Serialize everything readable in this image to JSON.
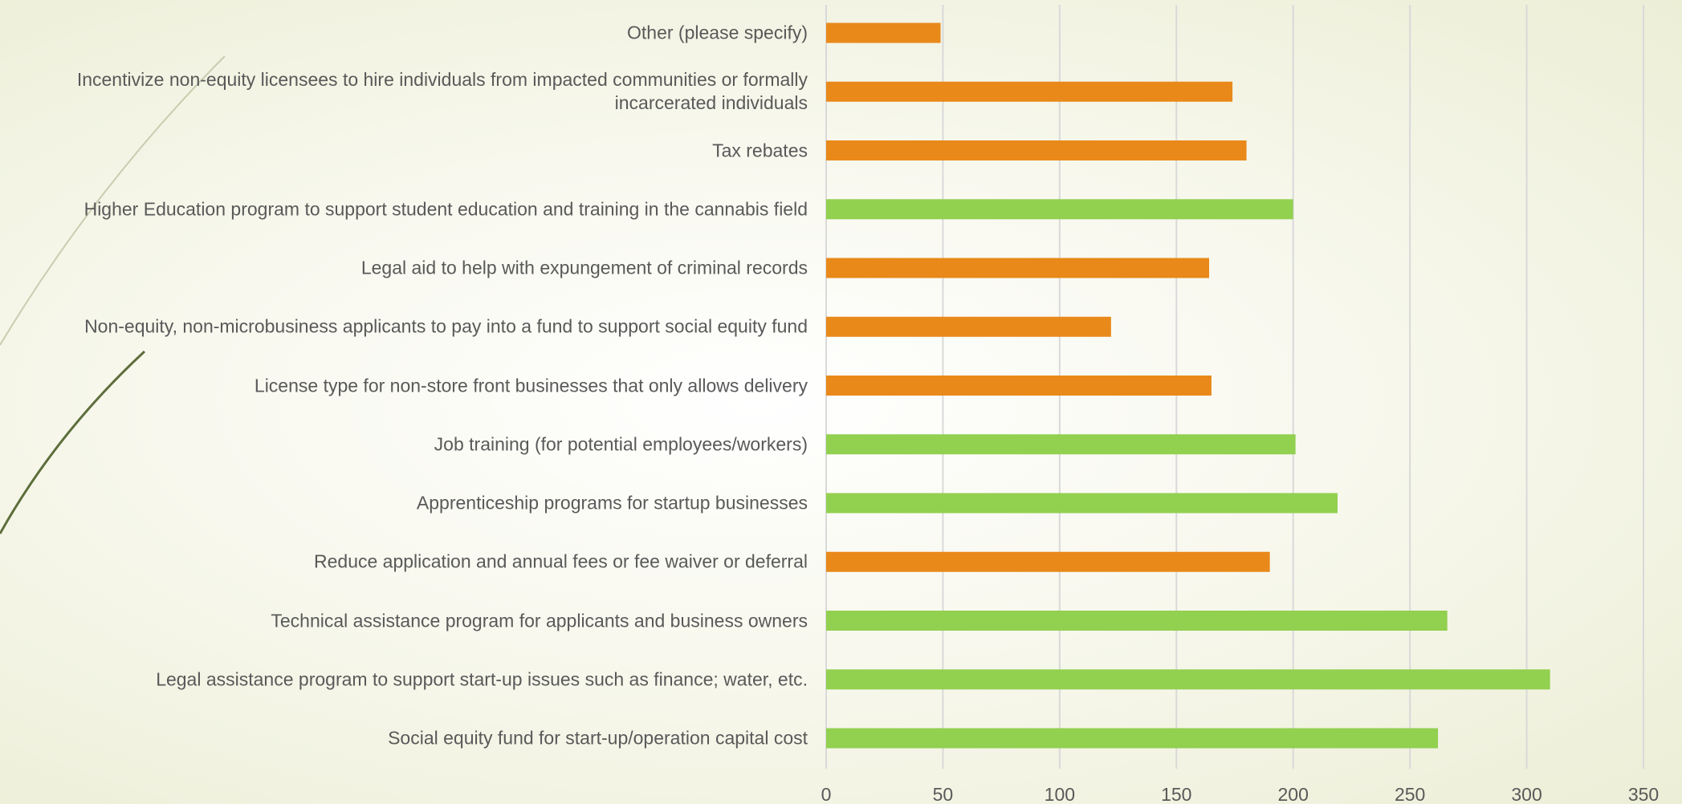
{
  "chart_data": {
    "type": "bar",
    "orientation": "horizontal",
    "categories": [
      "Other (please specify)",
      "Incentivize non-equity licensees to hire individuals from impacted communities or formally incarcerated individuals",
      "Tax rebates",
      "Higher Education program to support student education and training in the cannabis field",
      "Legal aid to help with expungement of criminal records",
      "Non-equity, non-microbusiness applicants to pay into a fund to support social equity fund",
      "License type for non-store front businesses that only allows delivery",
      "Job training (for potential employees/workers)",
      "Apprenticeship programs for startup businesses",
      "Reduce application and annual fees or fee waiver or deferral",
      "Technical assistance program for applicants and business owners",
      "Legal assistance program to support start-up issues such as finance; water, etc.",
      "Social equity fund for start-up/operation capital cost"
    ],
    "values": [
      49,
      174,
      180,
      200,
      164,
      122,
      165,
      201,
      219,
      190,
      266,
      310,
      262
    ],
    "colors": [
      "#e8891a",
      "#e8891a",
      "#e8891a",
      "#92d050",
      "#e8891a",
      "#e8891a",
      "#e8891a",
      "#92d050",
      "#92d050",
      "#e8891a",
      "#92d050",
      "#92d050",
      "#92d050"
    ],
    "xlim": [
      0,
      350
    ],
    "xticks": [
      0,
      50,
      100,
      150,
      200,
      250,
      300,
      350
    ],
    "grid": true
  }
}
